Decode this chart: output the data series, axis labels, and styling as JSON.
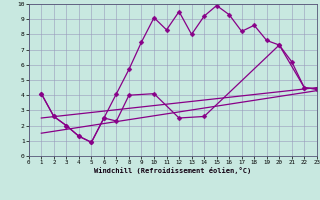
{
  "xlabel": "Windchill (Refroidissement éolien,°C)",
  "xlim": [
    0,
    23
  ],
  "ylim": [
    0,
    10
  ],
  "xticks": [
    0,
    1,
    2,
    3,
    4,
    5,
    6,
    7,
    8,
    9,
    10,
    11,
    12,
    13,
    14,
    15,
    16,
    17,
    18,
    19,
    20,
    21,
    22,
    23
  ],
  "yticks": [
    0,
    1,
    2,
    3,
    4,
    5,
    6,
    7,
    8,
    9,
    10
  ],
  "bg_color": "#c8e8e0",
  "line_color": "#880088",
  "grid_color": "#9999bb",
  "line1_x": [
    1,
    2,
    3,
    4,
    5,
    6,
    7,
    8,
    9,
    10,
    11,
    12,
    13,
    14,
    15,
    16,
    17,
    18,
    19,
    20,
    21,
    22,
    23
  ],
  "line1_y": [
    4.1,
    2.6,
    2.0,
    1.3,
    0.9,
    2.5,
    4.1,
    5.7,
    7.5,
    9.1,
    8.3,
    9.5,
    8.0,
    9.2,
    9.9,
    9.3,
    8.2,
    8.6,
    7.6,
    7.3,
    6.2,
    4.5,
    4.4
  ],
  "line2_x": [
    1,
    2,
    3,
    4,
    5,
    6,
    7,
    8,
    10,
    12,
    14,
    20,
    22,
    23
  ],
  "line2_y": [
    4.1,
    2.6,
    2.0,
    1.3,
    0.9,
    2.5,
    2.3,
    4.0,
    4.1,
    2.5,
    2.6,
    7.3,
    4.5,
    4.4
  ],
  "line3_x": [
    1,
    23
  ],
  "line3_y": [
    2.5,
    4.5
  ],
  "line4_x": [
    1,
    23
  ],
  "line4_y": [
    1.5,
    4.3
  ],
  "marker_size": 2.5,
  "linewidth": 0.9
}
